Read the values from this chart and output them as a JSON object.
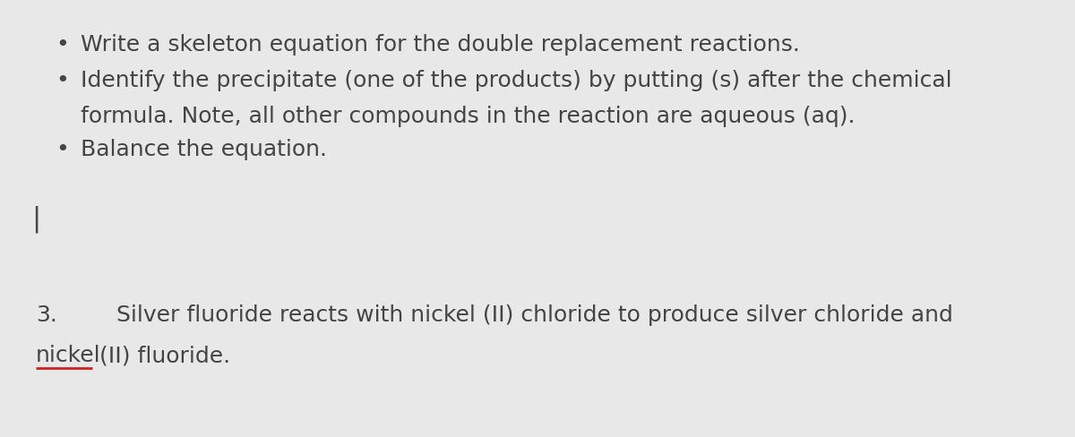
{
  "background_color": "#e8e8e8",
  "text_color": "#444444",
  "bullet1": "Write a skeleton equation for the double replacement reactions.",
  "bullet2_line1": "Identify the precipitate (one of the products) by putting (s) after the chemical",
  "bullet2_line2": "formula. Note, all other compounds in the reaction are aqueous (aq).",
  "bullet3": "Balance the equation.",
  "vertical_bar": "|",
  "number": "3.",
  "sentence1": "Silver fluoride reacts with nickel (II) chloride to produce silver chloride and",
  "sentence2_seg1": "nickel",
  "sentence2_seg2": " (II) fluoride.",
  "underline_color": "#cc2222",
  "font_size": 18,
  "bg_noise": true
}
